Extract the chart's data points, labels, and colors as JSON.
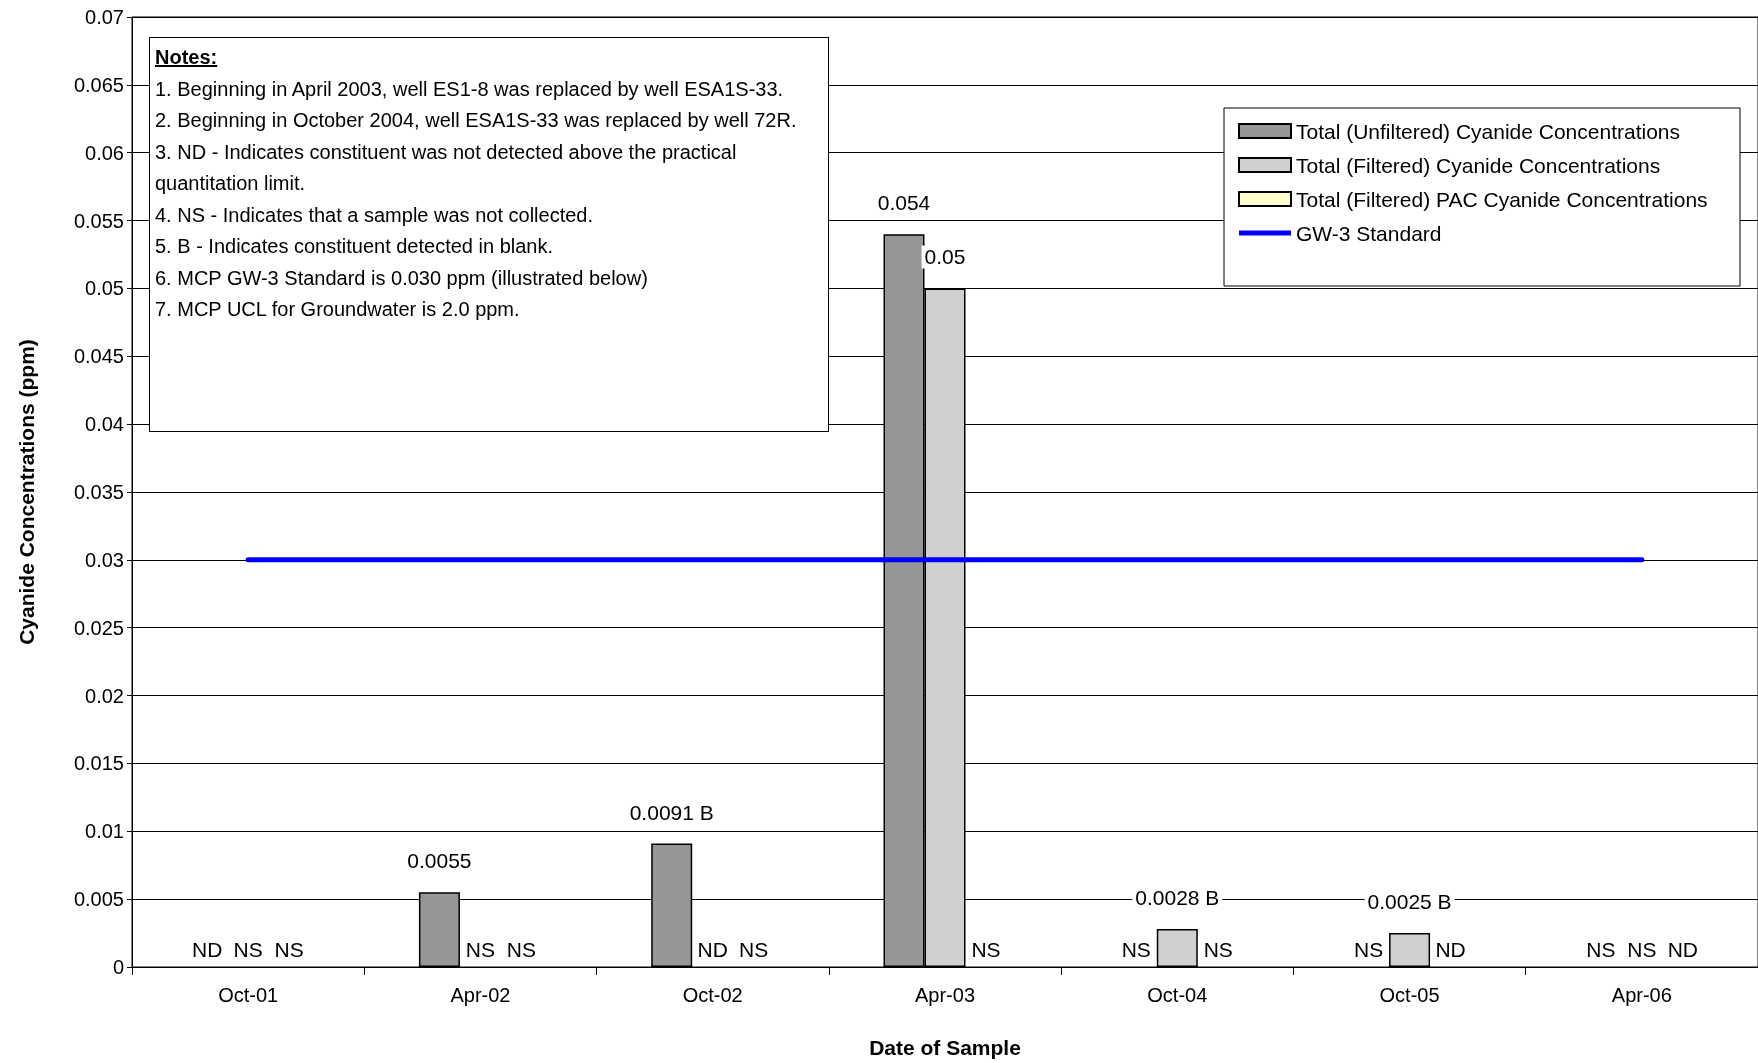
{
  "chart_data": {
    "type": "bar",
    "xlabel": "Date of Sample",
    "ylabel": "Cyanide Concentrations (ppm)",
    "categories": [
      "Oct-01",
      "Apr-02",
      "Oct-02",
      "Apr-03",
      "Oct-04",
      "Oct-05",
      "Apr-06"
    ],
    "series": [
      {
        "name": "Total (Unfiltered) Cyanide Concentrations",
        "color": "#969696",
        "values": [
          null,
          0.0055,
          0.0091,
          0.054,
          null,
          null,
          null
        ],
        "value_labels": [
          "ND",
          "0.0055",
          "0.0091 B",
          "0.054",
          "NS",
          "NS",
          "NS"
        ]
      },
      {
        "name": "Total (Filtered) Cyanide Concentrations",
        "color": "#d0d0d0",
        "values": [
          null,
          null,
          null,
          0.05,
          0.0028,
          0.0025,
          null
        ],
        "value_labels": [
          "NS",
          "NS",
          "ND",
          "0.05",
          "0.0028 B",
          "0.0025 B",
          "NS"
        ]
      },
      {
        "name": "Total (Filtered) PAC Cyanide Concentrations",
        "color": "#ffffcc",
        "values": [
          null,
          null,
          null,
          null,
          null,
          null,
          null
        ],
        "value_labels": [
          "NS",
          "NS",
          "NS",
          "NS",
          "NS",
          "ND",
          "ND"
        ]
      },
      {
        "name": "GW-3 Standard",
        "type": "line",
        "color": "#0000ff",
        "marker": "none",
        "values": [
          0.03,
          0.03,
          0.03,
          0.03,
          0.03,
          0.03,
          0.03
        ]
      }
    ],
    "ylim": [
      0,
      0.07
    ],
    "yticks": [
      0,
      0.005,
      0.01,
      0.015,
      0.02,
      0.025,
      0.03,
      0.035,
      0.04,
      0.045,
      0.05,
      0.055,
      0.06,
      0.065,
      0.07
    ],
    "grid": "y",
    "legend": "top right",
    "annotations": [
      "Notes:",
      "1.  Beginning in April 2003, well ES1-8 was replaced by well ESA1S-33.",
      "2.  Beginning in October 2004, well ESA1S-33 was replaced by well 72R.",
      "3.  ND - Indicates constituent was not detected above the practical quantitation limit.",
      "4.  NS - Indicates that a sample was not collected.",
      "5.  B - Indicates constituent detected in blank.",
      "6.  MCP GW-3 Standard is 0.030 ppm (illustrated below)",
      "7.  MCP UCL for Groundwater is 2.0 ppm."
    ]
  }
}
